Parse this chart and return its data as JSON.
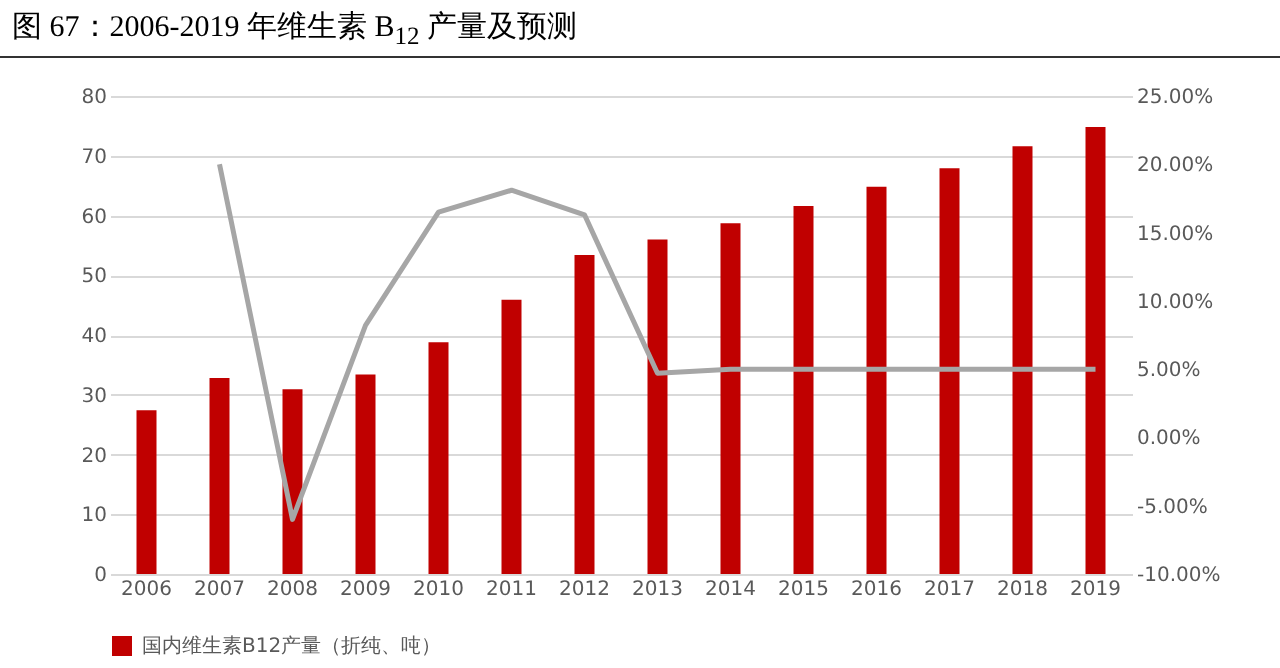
{
  "chart_data": {
    "type": "bar",
    "title": "图 67：2006-2019 年维生素 B$_{12}$ 产量及预测",
    "categories": [
      "2006",
      "2007",
      "2008",
      "2009",
      "2010",
      "2011",
      "2012",
      "2013",
      "2014",
      "2015",
      "2016",
      "2017",
      "2018",
      "2019"
    ],
    "series": [
      {
        "name": "国内维生素B12产量（折纯、吨）",
        "color": "#c00000",
        "values": [
          27.4,
          32.8,
          30.9,
          33.4,
          38.8,
          45.9,
          53.4,
          56.0,
          58.7,
          61.6,
          64.8,
          67.9,
          71.6,
          74.8
        ]
      },
      {
        "type": "line",
        "axis": "y2",
        "color": "#a6a6a6",
        "values": [
          null,
          20.0,
          -6.0,
          8.2,
          16.5,
          18.1,
          16.3,
          4.7,
          5.0,
          5.0,
          5.0,
          5.0,
          5.0,
          5.0
        ]
      }
    ],
    "ylim": [
      0,
      80
    ],
    "yticks": [
      0,
      10,
      20,
      30,
      40,
      50,
      60,
      70,
      80
    ],
    "y2lim": [
      -10,
      25
    ],
    "y2ticks": [
      {
        "value": -10,
        "label": "-10.00%"
      },
      {
        "value": -5,
        "label": "-5.00%"
      },
      {
        "value": 0,
        "label": "0.00%"
      },
      {
        "value": 5,
        "label": "5.00%"
      },
      {
        "value": 10,
        "label": "10.00%"
      },
      {
        "value": 15,
        "label": "15.00%"
      },
      {
        "value": 20,
        "label": "20.00%"
      },
      {
        "value": 25,
        "label": "25.00%"
      }
    ],
    "grid": "y",
    "legend": "bottom"
  }
}
